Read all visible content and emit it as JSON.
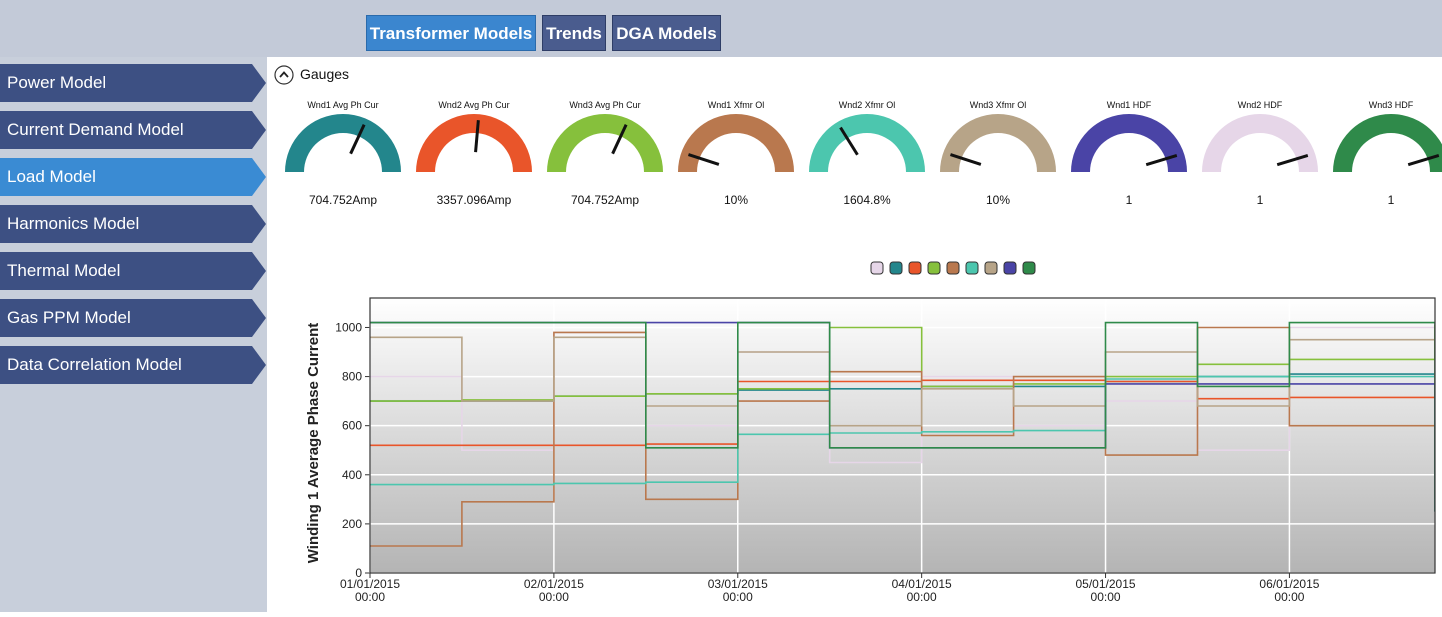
{
  "tabs": [
    "Transformer Models",
    "Trends",
    "DGA Models"
  ],
  "sidebar": [
    "Power Model",
    "Current Demand Model",
    "Load Model",
    "Harmonics Model",
    "Thermal Model",
    "Gas PPM Model",
    "Data Correlation Model"
  ],
  "gauges": {
    "title": "Gauges",
    "items": [
      {
        "label": "Wnd1 Avg Ph Cur",
        "reading": "704.752Amp",
        "color": "#23868c"
      },
      {
        "label": "Wnd2 Avg Ph Cur",
        "reading": "3357.096Amp",
        "color": "#e9552a"
      },
      {
        "label": "Wnd3 Avg Ph Cur",
        "reading": "704.752Amp",
        "color": "#86c03c"
      },
      {
        "label": "Wnd1 Xfmr Ol",
        "reading": "10%",
        "color": "#b9784e"
      },
      {
        "label": "Wnd2 Xfmr Ol",
        "reading": "1604.8%",
        "color": "#4cc6ae"
      },
      {
        "label": "Wnd3 Xfmr Ol",
        "reading": "10%",
        "color": "#b7a488"
      },
      {
        "label": "Wnd1 HDF",
        "reading": "1",
        "color": "#4a44a6"
      },
      {
        "label": "Wnd2 HDF",
        "reading": "1",
        "color": "#e6d6e8"
      },
      {
        "label": "Wnd3 HDF",
        "reading": "1",
        "color": "#2f8a4a"
      }
    ]
  },
  "chart_data": {
    "type": "line",
    "y_label": "Winding 1 Average Phase Current",
    "x": [
      "2015-01-01T00:00",
      "2015-01-01T12:00",
      "2015-01-02T00:00",
      "2015-01-02T12:00",
      "2015-01-03T00:00",
      "2015-01-03T12:00",
      "2015-01-04T00:00",
      "2015-01-04T12:00",
      "2015-01-05T00:00",
      "2015-01-05T12:00",
      "2015-01-06T00:00",
      "2015-01-06T19:00"
    ],
    "xlim": [
      "2015-01-01T00:00",
      "2015-01-06T19:00"
    ],
    "xticks": [
      {
        "value": "2015-01-01T00:00",
        "label": "01/01/2015 00:00"
      },
      {
        "value": "2015-01-02T00:00",
        "label": "02/01/2015 00:00"
      },
      {
        "value": "2015-01-03T00:00",
        "label": "03/01/2015 00:00"
      },
      {
        "value": "2015-01-04T00:00",
        "label": "04/01/2015 00:00"
      },
      {
        "value": "2015-01-05T00:00",
        "label": "05/01/2015 00:00"
      },
      {
        "value": "2015-01-06T00:00",
        "label": "06/01/2015 00:00"
      }
    ],
    "ylim": [
      0,
      1120
    ],
    "yticks": [
      0,
      200,
      400,
      600,
      800,
      1000
    ],
    "grid": true,
    "series": [
      {
        "color": "#e6d6e8",
        "values": [
          800,
          500,
          980,
          600,
          900,
          450,
          800,
          600,
          700,
          500,
          1000,
          800
        ]
      },
      {
        "color": "#23868c",
        "values": [
          700,
          700,
          720,
          730,
          745,
          750,
          760,
          760,
          780,
          800,
          810,
          810
        ]
      },
      {
        "color": "#e9552a",
        "values": [
          520,
          520,
          520,
          525,
          780,
          780,
          785,
          785,
          780,
          710,
          715,
          720
        ]
      },
      {
        "color": "#86c03c",
        "values": [
          700,
          705,
          720,
          730,
          750,
          1000,
          760,
          770,
          800,
          850,
          870,
          1010
        ]
      },
      {
        "color": "#b9784e",
        "values": [
          110,
          290,
          980,
          300,
          700,
          820,
          560,
          800,
          480,
          1000,
          600,
          300
        ]
      },
      {
        "color": "#4cc6ae",
        "values": [
          360,
          360,
          365,
          370,
          565,
          570,
          575,
          580,
          790,
          800,
          800,
          810
        ]
      },
      {
        "color": "#b7a488",
        "values": [
          960,
          700,
          960,
          680,
          900,
          600,
          750,
          680,
          900,
          680,
          950,
          720
        ]
      },
      {
        "color": "#4a44a6",
        "values": [
          1020,
          1020,
          1020,
          1020,
          1020,
          510,
          510,
          510,
          770,
          770,
          770,
          250
        ]
      },
      {
        "color": "#2f8a4a",
        "values": [
          1020,
          1020,
          1020,
          510,
          1020,
          510,
          510,
          510,
          1020,
          760,
          1020,
          250
        ]
      }
    ]
  }
}
